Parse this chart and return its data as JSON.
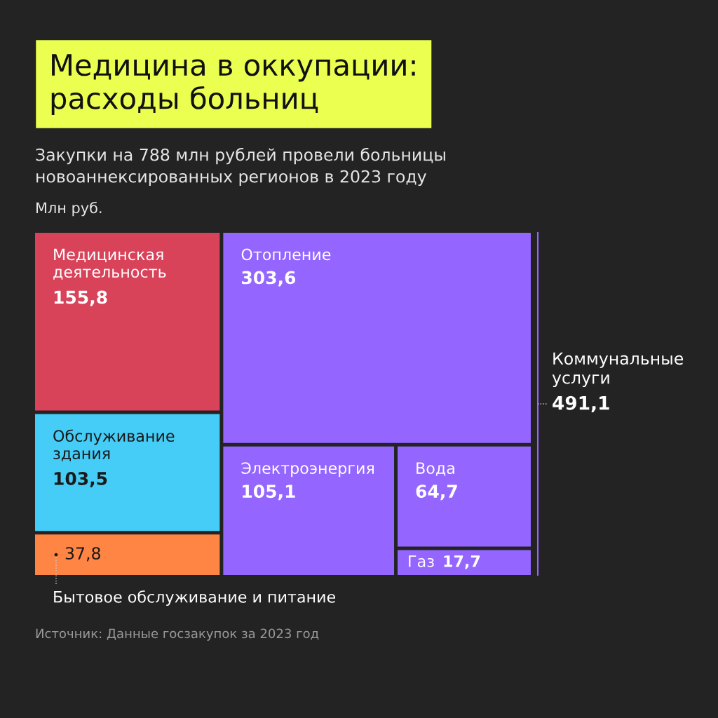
{
  "chart_data": {
    "type": "other",
    "title": "Медицина в оккупации:\nрасходы больниц",
    "subtitle": "Закупки на 788 млн рублей провели больницы\nновоаннексированных регионов в 2023 году",
    "ylabel": "Млн руб.",
    "categories": [
      "Медицинская\nдеятельность",
      "Обслуживание\nздания",
      "Бытовое обслуживание и питание",
      "Отопление",
      "Электроэнергия",
      "Вода",
      "Газ"
    ],
    "values": [
      155.8,
      103.5,
      37.8,
      303.6,
      105.1,
      64.7,
      17.7
    ],
    "value_labels": [
      "155,8",
      "103,5",
      "37,8",
      "303,6",
      "105,1",
      "64,7",
      "17,7"
    ],
    "colors": [
      "#d9435a",
      "#45cdf7",
      "#ff8545",
      "#9466ff",
      "#9466ff",
      "#9466ff",
      "#9466ff"
    ],
    "annotations": [
      "Коммунальные\nуслуги",
      "491,1",
      "Источник: Данные госзакупок за 2023 год"
    ]
  }
}
